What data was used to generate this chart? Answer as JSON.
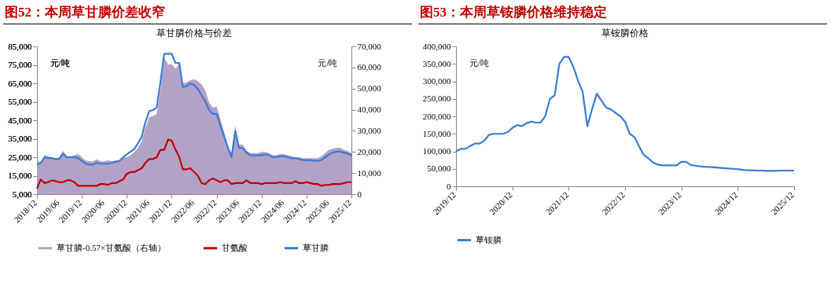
{
  "chart_data": [
    {
      "type": "line",
      "title": "图52：本周草甘膦价差收窄",
      "subtitle": "草甘膦价格与价差",
      "ylabel": "元/吨",
      "y2label": "元/吨",
      "x": [
        "2018-12",
        "2019-01",
        "2019-02",
        "2019-03",
        "2019-04",
        "2019-05",
        "2019-06",
        "2019-07",
        "2019-08",
        "2019-09",
        "2019-10",
        "2019-11",
        "2019-12",
        "2020-01",
        "2020-02",
        "2020-03",
        "2020-04",
        "2020-05",
        "2020-06",
        "2020-07",
        "2020-08",
        "2020-09",
        "2020-10",
        "2020-11",
        "2020-12",
        "2021-01",
        "2021-02",
        "2021-03",
        "2021-04",
        "2021-05",
        "2021-06",
        "2021-07",
        "2021-08",
        "2021-09",
        "2021-10",
        "2021-11",
        "2021-12",
        "2022-01",
        "2022-02",
        "2022-03",
        "2022-04",
        "2022-05",
        "2022-06",
        "2022-07",
        "2022-08",
        "2022-09",
        "2022-10",
        "2022-11",
        "2022-12",
        "2023-01",
        "2023-02",
        "2023-03",
        "2023-04",
        "2023-05",
        "2023-06",
        "2023-07",
        "2023-08",
        "2023-09",
        "2023-10",
        "2023-11",
        "2023-12",
        "2024-01",
        "2024-02",
        "2024-03",
        "2024-04",
        "2024-05",
        "2024-06",
        "2024-07",
        "2024-08",
        "2024-09",
        "2024-10",
        "2024-11",
        "2024-12",
        "2025-01",
        "2025-02",
        "2025-03",
        "2025-04",
        "2025-05",
        "2025-06",
        "2025-07",
        "2025-08",
        "2025-09",
        "2025-10",
        "2025-11",
        "2025-12"
      ],
      "series": [
        {
          "name": "草甘膦-0.57×甘氨酸（右轴）",
          "type": "area",
          "axis": "y2",
          "color": "#b3a2c7",
          "values": [
            16500,
            14500,
            18500,
            18000,
            17500,
            17000,
            17500,
            20500,
            18000,
            18000,
            18500,
            19000,
            17500,
            16000,
            15500,
            15500,
            16500,
            15500,
            15500,
            16000,
            15500,
            16000,
            16000,
            17500,
            17500,
            18500,
            20000,
            22000,
            25000,
            31500,
            36500,
            37000,
            38000,
            49500,
            64500,
            61500,
            61500,
            59500,
            62000,
            52500,
            53000,
            54000,
            54500,
            53500,
            52000,
            49000,
            43500,
            41000,
            41500,
            35500,
            29000,
            23500,
            19000,
            32500,
            23500,
            23500,
            20500,
            19500,
            19500,
            19500,
            20000,
            20000,
            19500,
            18500,
            18500,
            19000,
            19000,
            18500,
            18000,
            17500,
            17500,
            17000,
            17000,
            17000,
            17000,
            17000,
            18000,
            19500,
            21000,
            21500,
            22000,
            22000,
            21000,
            20500,
            19500
          ]
        },
        {
          "name": "甘氨酸",
          "color": "#c00000",
          "values": [
            8000,
            13000,
            11000,
            11500,
            12500,
            12000,
            11500,
            11500,
            12500,
            12500,
            11500,
            9500,
            9500,
            9500,
            9500,
            9500,
            9500,
            10500,
            10500,
            10000,
            11000,
            11000,
            12000,
            13000,
            16000,
            17000,
            17000,
            18000,
            19000,
            22000,
            24000,
            24000,
            25000,
            29000,
            29000,
            34500,
            34000,
            29000,
            25000,
            18500,
            18500,
            19000,
            17000,
            15000,
            11000,
            10500,
            12500,
            13500,
            12500,
            11500,
            12500,
            12500,
            10500,
            11000,
            11000,
            11000,
            12500,
            11000,
            11000,
            11000,
            10500,
            11000,
            11000,
            11000,
            11000,
            11500,
            11000,
            11000,
            11000,
            12000,
            11000,
            11000,
            11500,
            11000,
            10500,
            10500,
            9500,
            10000,
            10000,
            10500,
            10500,
            10500,
            11000,
            11500,
            11500
          ]
        },
        {
          "name": "草甘膦",
          "color": "#3a7bd5",
          "values": [
            21000,
            22000,
            25000,
            24500,
            24500,
            24000,
            24000,
            27000,
            25000,
            25000,
            25000,
            24500,
            23000,
            21500,
            21000,
            21000,
            22000,
            21500,
            21500,
            21500,
            22000,
            22500,
            23000,
            25000,
            26500,
            28000,
            29500,
            32500,
            36000,
            44000,
            50000,
            50500,
            52000,
            66000,
            81000,
            81000,
            81000,
            76000,
            76000,
            63000,
            63500,
            65000,
            64000,
            62000,
            58500,
            55000,
            50500,
            48500,
            48500,
            42000,
            36000,
            30500,
            25000,
            39000,
            30000,
            30000,
            27500,
            26000,
            26000,
            26000,
            26000,
            26500,
            26000,
            25000,
            25000,
            25500,
            25500,
            25000,
            24500,
            24500,
            24000,
            23500,
            23500,
            23500,
            23000,
            23000,
            23500,
            25000,
            26500,
            27500,
            28000,
            28000,
            27500,
            27000,
            26000
          ]
        }
      ],
      "xlim": [
        "2018-12",
        "2025-12"
      ],
      "xticks": [
        {
          "value": "2018-12",
          "label": "2018/12"
        },
        {
          "value": "2019-06",
          "label": "2019/06"
        },
        {
          "value": "2019-12",
          "label": "2019/12"
        },
        {
          "value": "2020-06",
          "label": "2020/06"
        },
        {
          "value": "2020-12",
          "label": "2020/12"
        },
        {
          "value": "2021-06",
          "label": "2021/06"
        },
        {
          "value": "2021-12",
          "label": "2021/12"
        },
        {
          "value": "2022-06",
          "label": "2022/06"
        },
        {
          "value": "2022-12",
          "label": "2022/12"
        },
        {
          "value": "2023-06",
          "label": "2023/06"
        },
        {
          "value": "2023-12",
          "label": "2023/12"
        },
        {
          "value": "2024-06",
          "label": "2024/06"
        },
        {
          "value": "2024-12",
          "label": "2024/12"
        },
        {
          "value": "2025-06",
          "label": "2025/06"
        },
        {
          "value": "2025-12",
          "label": "2025/12"
        }
      ],
      "ylim": [
        5000,
        85000
      ],
      "yticks": [
        {
          "value": 5000,
          "label": "5,000"
        },
        {
          "value": 15000,
          "label": "15,000"
        },
        {
          "value": 25000,
          "label": "25,000"
        },
        {
          "value": 35000,
          "label": "35,000"
        },
        {
          "value": 45000,
          "label": "45,000"
        },
        {
          "value": 55000,
          "label": "55,000"
        },
        {
          "value": 65000,
          "label": "65,000"
        },
        {
          "value": 75000,
          "label": "75,000"
        },
        {
          "value": 85000,
          "label": "85,000"
        }
      ],
      "y2lim": [
        0,
        70000
      ],
      "y2ticks": [
        0,
        {
          "value": 10000,
          "label": "10,000"
        },
        {
          "value": 20000,
          "label": "20,000"
        },
        {
          "value": 30000,
          "label": "30,000"
        },
        {
          "value": 40000,
          "label": "40,000"
        },
        {
          "value": 50000,
          "label": "50,000"
        },
        {
          "value": 60000,
          "label": "60,000"
        },
        {
          "value": 70000,
          "label": "70,000"
        }
      ],
      "legend": "bottom"
    },
    {
      "type": "line",
      "title": "图53：本周草铵膦价格维持稳定",
      "subtitle": "草铵膦价格",
      "ylabel": "元/吨",
      "x": [
        "2019-12",
        "2020-01",
        "2020-02",
        "2020-03",
        "2020-04",
        "2020-05",
        "2020-06",
        "2020-07",
        "2020-08",
        "2020-09",
        "2020-10",
        "2020-11",
        "2020-12",
        "2021-01",
        "2021-02",
        "2021-03",
        "2021-04",
        "2021-05",
        "2021-06",
        "2021-07",
        "2021-08",
        "2021-09",
        "2021-10",
        "2021-11",
        "2021-12",
        "2022-01",
        "2022-02",
        "2022-03",
        "2022-04",
        "2022-05",
        "2022-06",
        "2022-07",
        "2022-08",
        "2022-09",
        "2022-10",
        "2022-11",
        "2022-12",
        "2023-01",
        "2023-02",
        "2023-03",
        "2023-04",
        "2023-05",
        "2023-06",
        "2023-07",
        "2023-08",
        "2023-09",
        "2023-10",
        "2023-11",
        "2023-12",
        "2024-01",
        "2024-02",
        "2024-03",
        "2024-04",
        "2024-05",
        "2024-06",
        "2024-07",
        "2024-08",
        "2024-09",
        "2024-10",
        "2024-11",
        "2024-12",
        "2025-01",
        "2025-02",
        "2025-03",
        "2025-04",
        "2025-05",
        "2025-06",
        "2025-07",
        "2025-08",
        "2025-09",
        "2025-10",
        "2025-11",
        "2025-12"
      ],
      "series": [
        {
          "name": "草铵膦",
          "color": "#3a7bd5",
          "values": [
            100000,
            107000,
            107000,
            115000,
            122000,
            122000,
            130000,
            147000,
            150000,
            150000,
            150000,
            155000,
            167000,
            175000,
            172000,
            180000,
            185000,
            182000,
            182000,
            200000,
            250000,
            260000,
            350000,
            370000,
            370000,
            340000,
            300000,
            270000,
            172000,
            220000,
            265000,
            245000,
            225000,
            220000,
            210000,
            200000,
            185000,
            150000,
            140000,
            115000,
            90000,
            80000,
            68000,
            62000,
            60000,
            60000,
            60000,
            60000,
            70000,
            70000,
            61000,
            59000,
            57000,
            56000,
            55000,
            54000,
            53000,
            52000,
            51000,
            50000,
            49000,
            47000,
            46000,
            46000,
            45000,
            45000,
            44000,
            44000,
            44000,
            45000,
            45000,
            45000,
            45000
          ]
        }
      ],
      "xlim": [
        "2019-12",
        "2025-12"
      ],
      "xticks": [
        {
          "value": "2019-12",
          "label": "2019/12"
        },
        {
          "value": "2020-12",
          "label": "2020/12"
        },
        {
          "value": "2021-12",
          "label": "2021/12"
        },
        {
          "value": "2022-12",
          "label": "2022/12"
        },
        {
          "value": "2023-12",
          "label": "2023/12"
        },
        {
          "value": "2024-12",
          "label": "2024/12"
        },
        {
          "value": "2025-12",
          "label": "2025/12"
        }
      ],
      "ylim": [
        0,
        400000
      ],
      "yticks": [
        0,
        {
          "value": 50000,
          "label": "50,000"
        },
        {
          "value": 100000,
          "label": "100,000"
        },
        {
          "value": 150000,
          "label": "150,000"
        },
        {
          "value": 200000,
          "label": "200,000"
        },
        {
          "value": 250000,
          "label": "250,000"
        },
        {
          "value": 300000,
          "label": "300,000"
        },
        {
          "value": 350000,
          "label": "350,000"
        },
        {
          "value": 400000,
          "label": "400,000"
        }
      ],
      "legend": "bottom"
    }
  ]
}
